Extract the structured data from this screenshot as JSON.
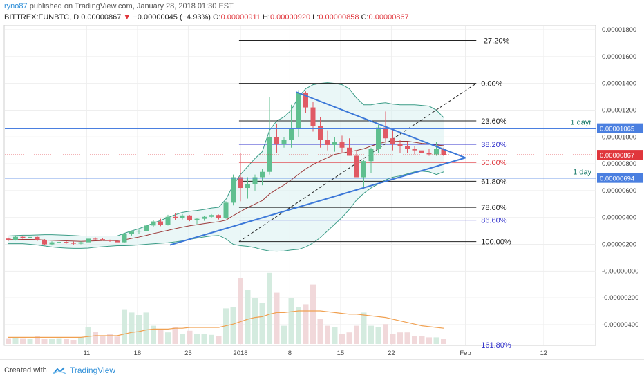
{
  "header": {
    "author": "ryno87",
    "published": "published on TradingView.com, January 28, 2018 01:30 EST",
    "symbol": "BITTREX:FUNBTC, D",
    "last": "0.00000867",
    "arrow": "▼",
    "change": "−0.00000045 (−4.93%)",
    "o_label": "O:",
    "o_value": "0.00000911",
    "h_label": "H:",
    "h_value": "0.00000920",
    "l_label": "L:",
    "l_value": "0.00000858",
    "c_label": "C:",
    "c_value": "0.00000867"
  },
  "footer": {
    "created": "Created with",
    "brand": "TradingView",
    "logo_icon": "tradingview-cloud-icon"
  },
  "colors": {
    "up": "#5fbf8f",
    "down": "#e05a64",
    "bollinger": "#3a9c86",
    "ma": "#9c3838",
    "trend": "#3c78d8",
    "hline": "#4a7fe0",
    "fib_black": "#222222",
    "fib_blue": "#3333cc",
    "fib_red": "#e0363c",
    "volume_ma": "#f0a050",
    "price_tag": "#e0363c"
  },
  "chart_data": {
    "type": "candlestick",
    "interval": "1 day",
    "grid": true,
    "ylim": [
      -5.4e-06,
      1.8e-05
    ],
    "y_ticks": [
      "0.00001800",
      "0.00001600",
      "0.00001400",
      "0.00001200",
      "0.00001000",
      "0.00000800",
      "0.00000600",
      "0.00000400",
      "0.00000200",
      "-0.00000000",
      "-0.00000200",
      "-0.00000400"
    ],
    "x_ticks": [
      {
        "label": "11",
        "pos": 10.8
      },
      {
        "label": "18",
        "pos": 17.8
      },
      {
        "label": "25",
        "pos": 24.8
      },
      {
        "label": "2018",
        "pos": 32.0
      },
      {
        "label": "8",
        "pos": 38.8
      },
      {
        "label": "15",
        "pos": 45.8
      },
      {
        "label": "22",
        "pos": 52.8
      },
      {
        "label": "Feb",
        "pos": 63.0
      },
      {
        "label": "12",
        "pos": 73.8
      }
    ],
    "ohlc": [
      [
        2.43e-06,
        2.5e-06,
        2.25e-06,
        2.32e-06
      ],
      [
        2.32e-06,
        2.62e-06,
        2.28e-06,
        2.56e-06
      ],
      [
        2.56e-06,
        2.65e-06,
        2.4e-06,
        2.45e-06
      ],
      [
        2.45e-06,
        2.62e-06,
        2.38e-06,
        2.55e-06
      ],
      [
        2.55e-06,
        2.58e-06,
        2.25e-06,
        2.3e-06
      ],
      [
        2.3e-06,
        2.38e-06,
        1.95e-06,
        2e-06
      ],
      [
        2e-06,
        2.22e-06,
        1.92e-06,
        2.15e-06
      ],
      [
        2.15e-06,
        2.28e-06,
        2.05e-06,
        2.18e-06
      ],
      [
        2.18e-06,
        2.25e-06,
        2.05e-06,
        2.1e-06
      ],
      [
        2.1e-06,
        2.2e-06,
        1.98e-06,
        2.05e-06
      ],
      [
        2.05e-06,
        2.22e-06,
        2e-06,
        2.15e-06
      ],
      [
        2.15e-06,
        2.48e-06,
        2.1e-06,
        2.42e-06
      ],
      [
        2.42e-06,
        2.52e-06,
        2.32e-06,
        2.38e-06
      ],
      [
        2.38e-06,
        2.45e-06,
        2.26e-06,
        2.3e-06
      ],
      [
        2.3e-06,
        2.35e-06,
        2.18e-06,
        2.25e-06
      ],
      [
        2.25e-06,
        2.3e-06,
        2.12e-06,
        2.15e-06
      ],
      [
        2.15e-06,
        2.85e-06,
        2.1e-06,
        2.8e-06
      ],
      [
        2.8e-06,
        3.02e-06,
        2.65e-06,
        2.95e-06
      ],
      [
        2.95e-06,
        3.1e-06,
        2.8e-06,
        3e-06
      ],
      [
        3e-06,
        3.45e-06,
        2.9e-06,
        3.4e-06
      ],
      [
        3.4e-06,
        3.8e-06,
        3.3e-06,
        3.7e-06
      ],
      [
        3.7e-06,
        3.9e-06,
        3.35e-06,
        3.45e-06
      ],
      [
        3.45e-06,
        4.2e-06,
        3.4e-06,
        4.05e-06
      ],
      [
        4.05e-06,
        4.3e-06,
        3.8e-06,
        3.95e-06
      ],
      [
        3.95e-06,
        4.25e-06,
        3.85e-06,
        4.15e-06
      ],
      [
        4.15e-06,
        4.18e-06,
        3.72e-06,
        3.78e-06
      ],
      [
        3.78e-06,
        3.95e-06,
        3.5e-06,
        3.9e-06
      ],
      [
        3.9e-06,
        4.1e-06,
        3.75e-06,
        4.05e-06
      ],
      [
        4.05e-06,
        4.25e-06,
        3.95e-06,
        4.18e-06
      ],
      [
        4.18e-06,
        4.22e-06,
        3.85e-06,
        3.95e-06
      ],
      [
        3.95e-06,
        5.2e-06,
        3.9e-06,
        5.1e-06
      ],
      [
        5.1e-06,
        7.2e-06,
        4.9e-06,
        7e-06
      ],
      [
        7e-06,
        8.8e-06,
        5.2e-06,
        6.2e-06
      ],
      [
        6.2e-06,
        7e-06,
        5.4e-06,
        6.5e-06
      ],
      [
        6.5e-06,
        7.2e-06,
        6e-06,
        7e-06
      ],
      [
        7e-06,
        7.6e-06,
        6.4e-06,
        7.4e-06
      ],
      [
        7.4e-06,
        1.3e-05,
        7.2e-06,
        1e-05
      ],
      [
        1e-05,
        1.1e-05,
        8.8e-06,
        9.5e-06
      ],
      [
        9.5e-06,
        1e-05,
        9.2e-06,
        9.8e-06
      ],
      [
        9.8e-06,
        1.24e-05,
        9.2e-06,
        1.06e-05
      ],
      [
        1.06e-05,
        1.35e-05,
        1e-05,
        1.33e-05
      ],
      [
        1.33e-05,
        1.34e-05,
        1.18e-05,
        1.22e-05
      ],
      [
        1.22e-05,
        1.26e-05,
        1.04e-05,
        1.08e-05
      ],
      [
        1.08e-05,
        1.15e-05,
        9.2e-06,
        9.8e-06
      ],
      [
        9.8e-06,
        1.05e-05,
        9e-06,
        9.4e-06
      ],
      [
        9.4e-06,
        1e-05,
        8.9e-06,
        9.6e-06
      ],
      [
        9.6e-06,
        1.01e-05,
        8.8e-06,
        9.2e-06
      ],
      [
        9.2e-06,
        9.9e-06,
        8.6e-06,
        8.6e-06
      ],
      [
        8.6e-06,
        9e-06,
        7e-06,
        7e-06
      ],
      [
        7e-06,
        8.3e-06,
        6.1e-06,
        8.2e-06
      ],
      [
        8.2e-06,
        9.2e-06,
        7.3e-06,
        9.1e-06
      ],
      [
        9.1e-06,
        1.09e-05,
        8.8e-06,
        1.07e-05
      ],
      [
        1.07e-05,
        1.19e-05,
        9.6e-06,
        9.9e-06
      ],
      [
        9.9e-06,
        1.06e-05,
        9e-06,
        9.5e-06
      ],
      [
        9.5e-06,
        9.8e-06,
        8.8e-06,
        9.3e-06
      ],
      [
        9.3e-06,
        9.6e-06,
        8.8e-06,
        9.1e-06
      ],
      [
        9.1e-06,
        9.3e-06,
        8.7e-06,
        9e-06
      ],
      [
        9e-06,
        9.4e-06,
        8.6e-06,
        8.8e-06
      ],
      [
        8.8e-06,
        9.1e-06,
        8.6e-06,
        8.7e-06
      ],
      [
        8.7e-06,
        9.6e-06,
        8.6e-06,
        9.12e-06
      ],
      [
        9.11e-06,
        9.2e-06,
        8.58e-06,
        8.67e-06
      ]
    ],
    "volume_scale": [
      0,
      1.0
    ],
    "volume": [
      0.07,
      0.08,
      0.07,
      0.06,
      0.1,
      0.06,
      0.06,
      0.07,
      0.06,
      0.05,
      0.08,
      0.2,
      0.15,
      0.1,
      0.12,
      0.09,
      0.42,
      0.38,
      0.35,
      0.38,
      0.22,
      0.18,
      0.14,
      0.2,
      0.12,
      0.16,
      0.12,
      0.12,
      0.11,
      0.1,
      0.43,
      0.45,
      0.8,
      0.65,
      0.55,
      0.5,
      0.86,
      0.62,
      0.22,
      0.55,
      0.45,
      0.48,
      0.72,
      0.3,
      0.22,
      0.2,
      0.12,
      0.14,
      0.22,
      0.38,
      0.22,
      0.2,
      0.24,
      0.12,
      0.14,
      0.14,
      0.1,
      0.1,
      0.08,
      0.08,
      0.06
    ],
    "bollinger_upper": [
      2.62e-06,
      2.65e-06,
      2.68e-06,
      2.68e-06,
      2.7e-06,
      2.72e-06,
      2.72e-06,
      2.7e-06,
      2.68e-06,
      2.65e-06,
      2.62e-06,
      2.62e-06,
      2.62e-06,
      2.62e-06,
      2.62e-06,
      2.62e-06,
      2.82e-06,
      3e-06,
      3.16e-06,
      3.36e-06,
      3.58e-06,
      3.78e-06,
      4e-06,
      4.2e-06,
      4.38e-06,
      4.46e-06,
      4.52e-06,
      4.6e-06,
      4.7e-06,
      4.76e-06,
      5.36e-06,
      6.4e-06,
      7.2e-06,
      7.8e-06,
      8.4e-06,
      8.9e-06,
      1.05e-05,
      1.12e-05,
      1.15e-05,
      1.2e-05,
      1.3e-05,
      1.36e-05,
      1.39e-05,
      1.4e-05,
      1.405e-05,
      1.4e-05,
      1.39e-05,
      1.36e-05,
      1.29e-05,
      1.24e-05,
      1.24e-05,
      1.25e-05,
      1.255e-05,
      1.245e-05,
      1.24e-05,
      1.24e-05,
      1.24e-05,
      1.235e-05,
      1.23e-05,
      1.2e-05,
      1.145e-05
    ],
    "bollinger_lower": [
      2.05e-06,
      2.05e-06,
      2.05e-06,
      2e-06,
      1.95e-06,
      1.88e-06,
      1.8e-06,
      1.75e-06,
      1.72e-06,
      1.7e-06,
      1.7e-06,
      1.72e-06,
      1.78e-06,
      1.82e-06,
      1.86e-06,
      1.9e-06,
      1.9e-06,
      1.92e-06,
      1.96e-06,
      2e-06,
      2.04e-06,
      2.08e-06,
      2.12e-06,
      2.18e-06,
      2.26e-06,
      2.36e-06,
      2.46e-06,
      2.55e-06,
      2.62e-06,
      2.66e-06,
      2.4e-06,
      2e-06,
      1.9e-06,
      1.85e-06,
      1.75e-06,
      1.6e-06,
      1.5e-06,
      1.48e-06,
      1.5e-06,
      1.58e-06,
      1.62e-06,
      1.8e-06,
      2.1e-06,
      2.5e-06,
      3e-06,
      3.5e-06,
      4e-06,
      4.6e-06,
      5.3e-06,
      5.8e-06,
      6.2e-06,
      6.5e-06,
      6.8e-06,
      7e-06,
      7.1e-06,
      7.25e-06,
      7.4e-06,
      7.45e-06,
      7.4e-06,
      7.2e-06,
      7.4e-06
    ],
    "ma": [
      2.35e-06,
      2.35e-06,
      2.36e-06,
      2.36e-06,
      2.35e-06,
      2.32e-06,
      2.3e-06,
      2.28e-06,
      2.26e-06,
      2.24e-06,
      2.22e-06,
      2.24e-06,
      2.26e-06,
      2.28e-06,
      2.28e-06,
      2.28e-06,
      2.34e-06,
      2.44e-06,
      2.54e-06,
      2.66e-06,
      2.8e-06,
      2.92e-06,
      3.04e-06,
      3.16e-06,
      3.28e-06,
      3.38e-06,
      3.46e-06,
      3.54e-06,
      3.62e-06,
      3.68e-06,
      3.8e-06,
      4.14e-06,
      4.44e-06,
      4.74e-06,
      5e-06,
      5.26e-06,
      5.74e-06,
      6.1e-06,
      6.42e-06,
      6.8e-06,
      7.22e-06,
      7.62e-06,
      7.94e-06,
      8.22e-06,
      8.46e-06,
      8.7e-06,
      8.8e-06,
      8.9e-06,
      9e-06,
      9.12e-06,
      9.32e-06,
      9.5e-06,
      9.62e-06,
      9.66e-06,
      9.68e-06,
      9.68e-06,
      9.6e-06,
      9.52e-06,
      9.48e-06,
      9.4e-06,
      9.35e-06
    ],
    "volume_ma": [
      0.08,
      0.08,
      0.08,
      0.08,
      0.08,
      0.08,
      0.08,
      0.08,
      0.08,
      0.08,
      0.08,
      0.09,
      0.1,
      0.1,
      0.1,
      0.1,
      0.12,
      0.14,
      0.15,
      0.17,
      0.18,
      0.18,
      0.18,
      0.19,
      0.19,
      0.2,
      0.2,
      0.2,
      0.2,
      0.2,
      0.22,
      0.24,
      0.27,
      0.3,
      0.32,
      0.33,
      0.36,
      0.38,
      0.38,
      0.39,
      0.4,
      0.4,
      0.4,
      0.4,
      0.39,
      0.38,
      0.37,
      0.36,
      0.36,
      0.35,
      0.34,
      0.33,
      0.32,
      0.3,
      0.28,
      0.26,
      0.24,
      0.22,
      0.21,
      0.2,
      0.19
    ],
    "trend_lines": [
      {
        "x1": 22.3,
        "y1": 1.95e-06,
        "x2": 63.0,
        "y2": 8.45e-06
      },
      {
        "x1": 39.7,
        "y1": 1.335e-05,
        "x2": 63.0,
        "y2": 8.45e-06
      }
    ],
    "horizontal_lines": [
      {
        "price": 1.065e-05,
        "label": "1 dayr",
        "tag": "0.00001065"
      },
      {
        "price": 6.94e-06,
        "label": "1 day",
        "tag": "0.00000694"
      }
    ],
    "current_price": {
      "price": 8.67e-06,
      "tag": "0.00000867"
    },
    "fib": {
      "x_start": 31.8,
      "x_end": 64.5,
      "levels": [
        {
          "label": "-27.20%",
          "price": 1.72e-05,
          "color": "black"
        },
        {
          "label": "0.00%",
          "price": 1.4e-05,
          "color": "black"
        },
        {
          "label": "23.60%",
          "price": 1.12e-05,
          "color": "black"
        },
        {
          "label": "38.20%",
          "price": 9.45e-06,
          "color": "blue"
        },
        {
          "label": "50.00%",
          "price": 8.1e-06,
          "color": "red"
        },
        {
          "label": "61.80%",
          "price": 6.7e-06,
          "color": "black"
        },
        {
          "label": "78.60%",
          "price": 4.75e-06,
          "color": "black"
        },
        {
          "label": "86.60%",
          "price": 3.8e-06,
          "color": "blue"
        },
        {
          "label": "100.00%",
          "price": 2.2e-06,
          "color": "black"
        }
      ],
      "cut_label": "161.80%"
    }
  }
}
